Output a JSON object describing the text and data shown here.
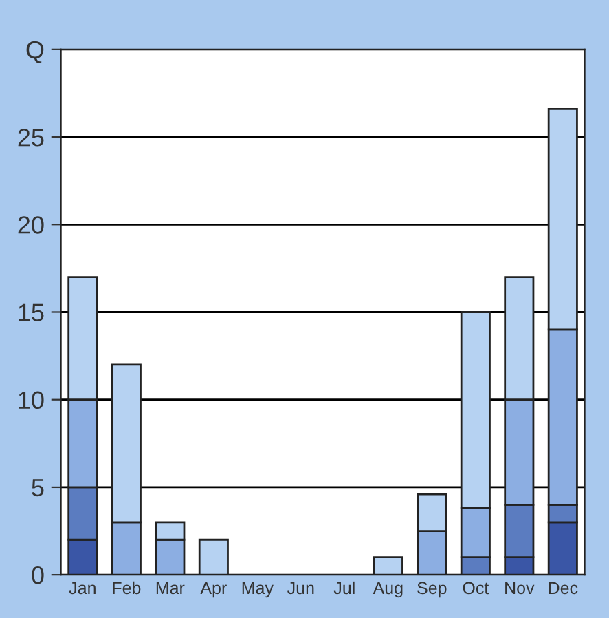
{
  "chart_data": {
    "type": "bar",
    "stacked": true,
    "categories": [
      "Jan",
      "Feb",
      "Mar",
      "Apr",
      "May",
      "Jun",
      "Jul",
      "Aug",
      "Sep",
      "Oct",
      "Nov",
      "Dec"
    ],
    "series": [
      {
        "color": "#3a56a6",
        "values": [
          2,
          0,
          0,
          0,
          0,
          0,
          0,
          0,
          0,
          0,
          1,
          3
        ]
      },
      {
        "color": "#5b7cc0",
        "values": [
          3,
          0,
          0,
          0,
          0,
          0,
          0,
          0,
          0,
          1,
          3,
          1
        ]
      },
      {
        "color": "#8caee2",
        "values": [
          5,
          3,
          2,
          0,
          0,
          0,
          0,
          0,
          2.5,
          2.8,
          6,
          10
        ]
      },
      {
        "color": "#b6d2f2",
        "values": [
          7,
          9,
          1,
          2,
          0,
          0,
          0,
          1,
          2.1,
          11.2,
          7,
          12.6
        ]
      }
    ],
    "ylim": [
      0,
      30
    ],
    "yticks": [
      0,
      5,
      10,
      15,
      20,
      25,
      {
        "value": 30,
        "label": "Q"
      }
    ],
    "grid": "y",
    "legend": false
  }
}
